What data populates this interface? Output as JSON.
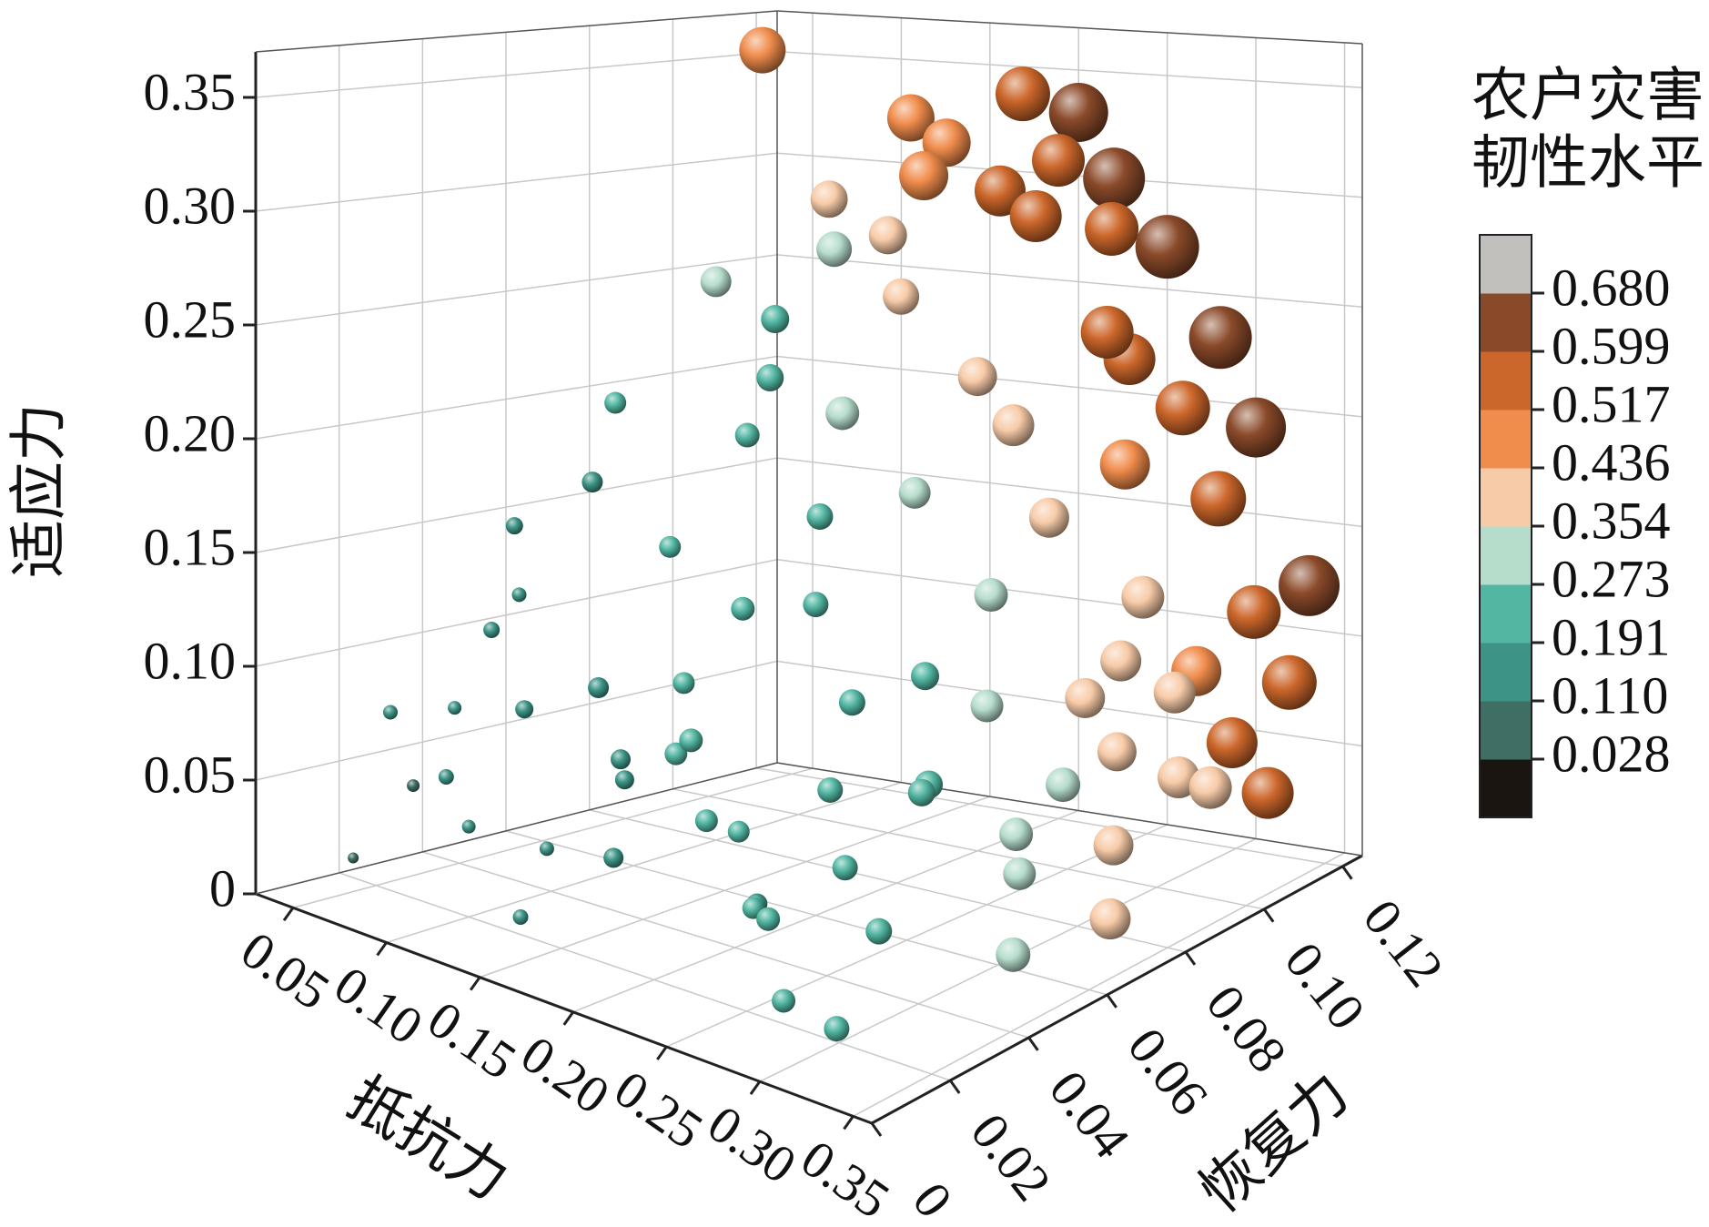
{
  "chart_data": {
    "type": "scatter3d",
    "xlabel": "抵抗力",
    "ylabel": "恢复力",
    "zlabel": "适应力",
    "xlim": [
      0.03,
      0.36
    ],
    "ylim": [
      0,
      0.125
    ],
    "zlim": [
      0,
      0.37
    ],
    "xticks": [
      0.05,
      {
        "value": 0.1,
        "label": "0.10"
      },
      0.15,
      {
        "value": 0.2,
        "label": "0.20"
      },
      0.25,
      {
        "value": 0.3,
        "label": "0.30"
      },
      0.35
    ],
    "yticks": [
      0,
      0.02,
      0.04,
      0.06,
      0.08,
      {
        "value": 0.1,
        "label": "0.10"
      },
      0.12
    ],
    "zticks": [
      0,
      0.05,
      {
        "value": 0.1,
        "label": "0.10"
      },
      0.15,
      {
        "value": 0.2,
        "label": "0.20"
      },
      0.25,
      {
        "value": 0.3,
        "label": "0.30"
      },
      0.35
    ],
    "grid": true,
    "colorbar": {
      "title": [
        "农户灾害",
        "韧性水平"
      ],
      "ticks": [
        0.028,
        {
          "value": 0.11,
          "label": "0.110"
        },
        0.191,
        0.273,
        0.354,
        0.436,
        0.517,
        0.599,
        {
          "value": 0.68,
          "label": "0.680"
        }
      ],
      "colors": [
        "#1b1511",
        "#3f6e64",
        "#3d9486",
        "#52b6a2",
        "#b6ddcc",
        "#f7cba8",
        "#f08c4c",
        "#cc672b",
        "#8a4a2a",
        "#c2c0bd"
      ]
    },
    "x": [
      0.06,
      0.07,
      0.08,
      0.09,
      0.1,
      0.11,
      0.12,
      0.13,
      0.14,
      0.15,
      0.16,
      0.17,
      0.18,
      0.19,
      0.2,
      0.21,
      0.22,
      0.23,
      0.24,
      0.25,
      0.26,
      0.27,
      0.28,
      0.3,
      0.32,
      0.12,
      0.1,
      0.14,
      0.08,
      0.16,
      0.18,
      0.2,
      0.13,
      0.09,
      0.11,
      0.06,
      0.07,
      0.22,
      0.24,
      0.26,
      0.19,
      0.15,
      0.21,
      0.23,
      0.25,
      0.27,
      0.29,
      0.31,
      0.33,
      0.18,
      0.15,
      0.12,
      0.17,
      0.2,
      0.24,
      0.28,
      0.3,
      0.32,
      0.34,
      0.26,
      0.22,
      0.14,
      0.1,
      0.27,
      0.31,
      0.33,
      0.29,
      0.17,
      0.19,
      0.21,
      0.16,
      0.14,
      0.23,
      0.2,
      0.18,
      0.25,
      0.27,
      0.29,
      0.31,
      0.33,
      0.32,
      0.34,
      0.3,
      0.26,
      0.24,
      0.08,
      0.22,
      0.25,
      0.3,
      0.33,
      0.2,
      0.28
    ],
    "y": [
      0.01,
      0.02,
      0.01,
      0.03,
      0.02,
      0.01,
      0.03,
      0.02,
      0.04,
      0.01,
      0.03,
      0.02,
      0.05,
      0.03,
      0.01,
      0.04,
      0.02,
      0.05,
      0.03,
      0.01,
      0.04,
      0.02,
      0.05,
      0.03,
      0.01,
      0.06,
      0.05,
      0.07,
      0.04,
      0.06,
      0.07,
      0.06,
      0.08,
      0.06,
      0.09,
      0.05,
      0.03,
      0.06,
      0.07,
      0.06,
      0.05,
      0.05,
      0.08,
      0.09,
      0.08,
      0.09,
      0.07,
      0.06,
      0.05,
      0.09,
      0.1,
      0.1,
      0.08,
      0.1,
      0.1,
      0.1,
      0.09,
      0.08,
      0.07,
      0.1,
      0.1,
      0.09,
      0.08,
      0.11,
      0.1,
      0.1,
      0.11,
      0.1,
      0.11,
      0.11,
      0.11,
      0.11,
      0.12,
      0.12,
      0.12,
      0.11,
      0.12,
      0.12,
      0.12,
      0.12,
      0.11,
      0.11,
      0.11,
      0.11,
      0.12,
      0.1,
      0.125,
      0.125,
      0.125,
      0.125,
      0.125,
      0.125
    ],
    "z": [
      0.02,
      0.05,
      0.09,
      0.12,
      0.04,
      0.07,
      0.03,
      0.1,
      0.06,
      0.02,
      0.08,
      0.12,
      0.04,
      0.09,
      0.06,
      0.02,
      0.11,
      0.07,
      0.03,
      0.09,
      0.05,
      0.01,
      0.08,
      0.04,
      0.02,
      0.15,
      0.18,
      0.2,
      0.16,
      0.13,
      0.17,
      0.14,
      0.22,
      0.21,
      0.24,
      0.12,
      0.08,
      0.1,
      0.06,
      0.12,
      0.01,
      0.1,
      0.18,
      0.13,
      0.09,
      0.05,
      0.03,
      0.06,
      0.02,
      0.26,
      0.28,
      0.27,
      0.21,
      0.22,
      0.16,
      0.1,
      0.07,
      0.04,
      0.02,
      0.08,
      0.2,
      0.3,
      0.26,
      0.12,
      0.09,
      0.05,
      0.04,
      0.31,
      0.3,
      0.29,
      0.32,
      0.33,
      0.28,
      0.31,
      0.34,
      0.24,
      0.2,
      0.16,
      0.11,
      0.08,
      0.06,
      0.04,
      0.09,
      0.18,
      0.22,
      0.36,
      0.3,
      0.27,
      0.19,
      0.12,
      0.33,
      0.23
    ],
    "values": [
      0.08,
      0.1,
      0.12,
      0.14,
      0.11,
      0.13,
      0.12,
      0.16,
      0.17,
      0.13,
      0.18,
      0.19,
      0.2,
      0.21,
      0.18,
      0.2,
      0.22,
      0.24,
      0.22,
      0.21,
      0.24,
      0.22,
      0.26,
      0.25,
      0.24,
      0.2,
      0.19,
      0.23,
      0.15,
      0.22,
      0.25,
      0.24,
      0.26,
      0.2,
      0.27,
      0.12,
      0.11,
      0.25,
      0.27,
      0.27,
      0.19,
      0.2,
      0.31,
      0.33,
      0.32,
      0.34,
      0.32,
      0.33,
      0.34,
      0.36,
      0.38,
      0.35,
      0.33,
      0.39,
      0.4,
      0.41,
      0.39,
      0.4,
      0.41,
      0.4,
      0.42,
      0.37,
      0.3,
      0.43,
      0.42,
      0.43,
      0.42,
      0.5,
      0.52,
      0.53,
      0.49,
      0.48,
      0.55,
      0.54,
      0.56,
      0.54,
      0.56,
      0.57,
      0.55,
      0.56,
      0.52,
      0.53,
      0.51,
      0.51,
      0.53,
      0.47,
      0.64,
      0.66,
      0.62,
      0.63,
      0.61,
      0.65
    ]
  }
}
